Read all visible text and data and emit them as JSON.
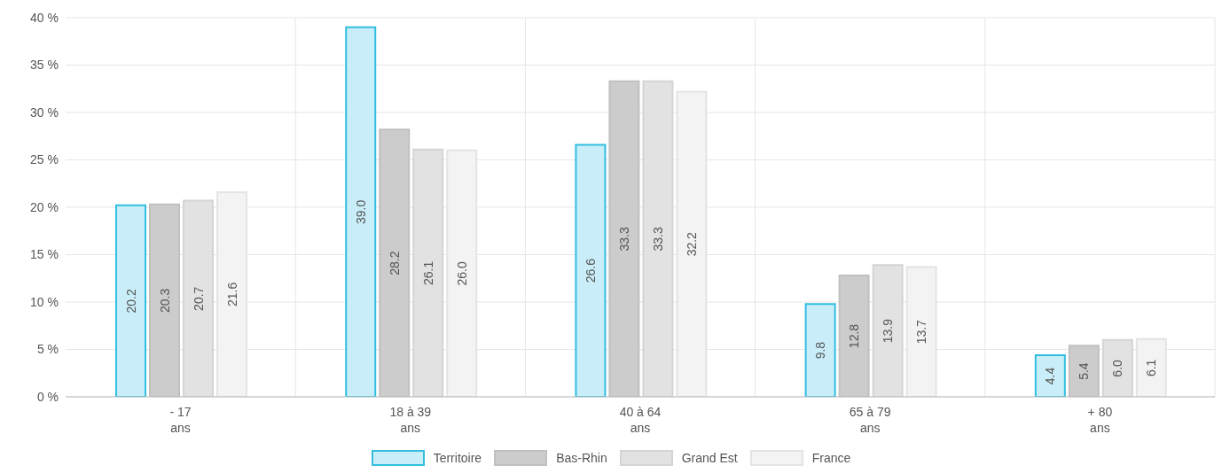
{
  "chart_data": {
    "type": "bar",
    "categories": [
      "- 17\nans",
      "18 à 39\nans",
      "40 à 64\nans",
      "65 à 79\nans",
      "+ 80\nans"
    ],
    "series": [
      {
        "name": "Territoire",
        "color": "#c9eef9",
        "values": [
          20.2,
          39.0,
          26.6,
          9.8,
          4.4
        ],
        "value_labels": [
          "20.2",
          "39.0",
          "26.6",
          "9.8",
          "4.4"
        ]
      },
      {
        "name": "Bas-Rhin",
        "color": "#cccccc",
        "values": [
          20.3,
          28.2,
          33.3,
          12.8,
          5.4
        ],
        "value_labels": [
          "20.3",
          "28.2",
          "33.3",
          "12.8",
          "5.4"
        ]
      },
      {
        "name": "Grand Est",
        "color": "#e2e2e2",
        "values": [
          20.7,
          26.1,
          33.3,
          13.9,
          6.0
        ],
        "value_labels": [
          "20.7",
          "26.1",
          "33.3",
          "13.9",
          "6.0"
        ]
      },
      {
        "name": "France",
        "color": "#f3f3f3",
        "values": [
          21.6,
          26.0,
          32.2,
          13.7,
          6.1
        ],
        "value_labels": [
          "21.6",
          "26.0",
          "32.2",
          "13.7",
          "6.1"
        ]
      }
    ],
    "ylim": [
      0,
      40
    ],
    "yticks": [
      {
        "value": 0,
        "label": "0 %"
      },
      {
        "value": 5,
        "label": "5 %"
      },
      {
        "value": 10,
        "label": "10 %"
      },
      {
        "value": 15,
        "label": "15 %"
      },
      {
        "value": 20,
        "label": "20 %"
      },
      {
        "value": 25,
        "label": "25 %"
      },
      {
        "value": 30,
        "label": "30 %"
      },
      {
        "value": 35,
        "label": "35 %"
      },
      {
        "value": 40,
        "label": "40 %"
      }
    ],
    "grid": true,
    "legend": "bottom"
  }
}
